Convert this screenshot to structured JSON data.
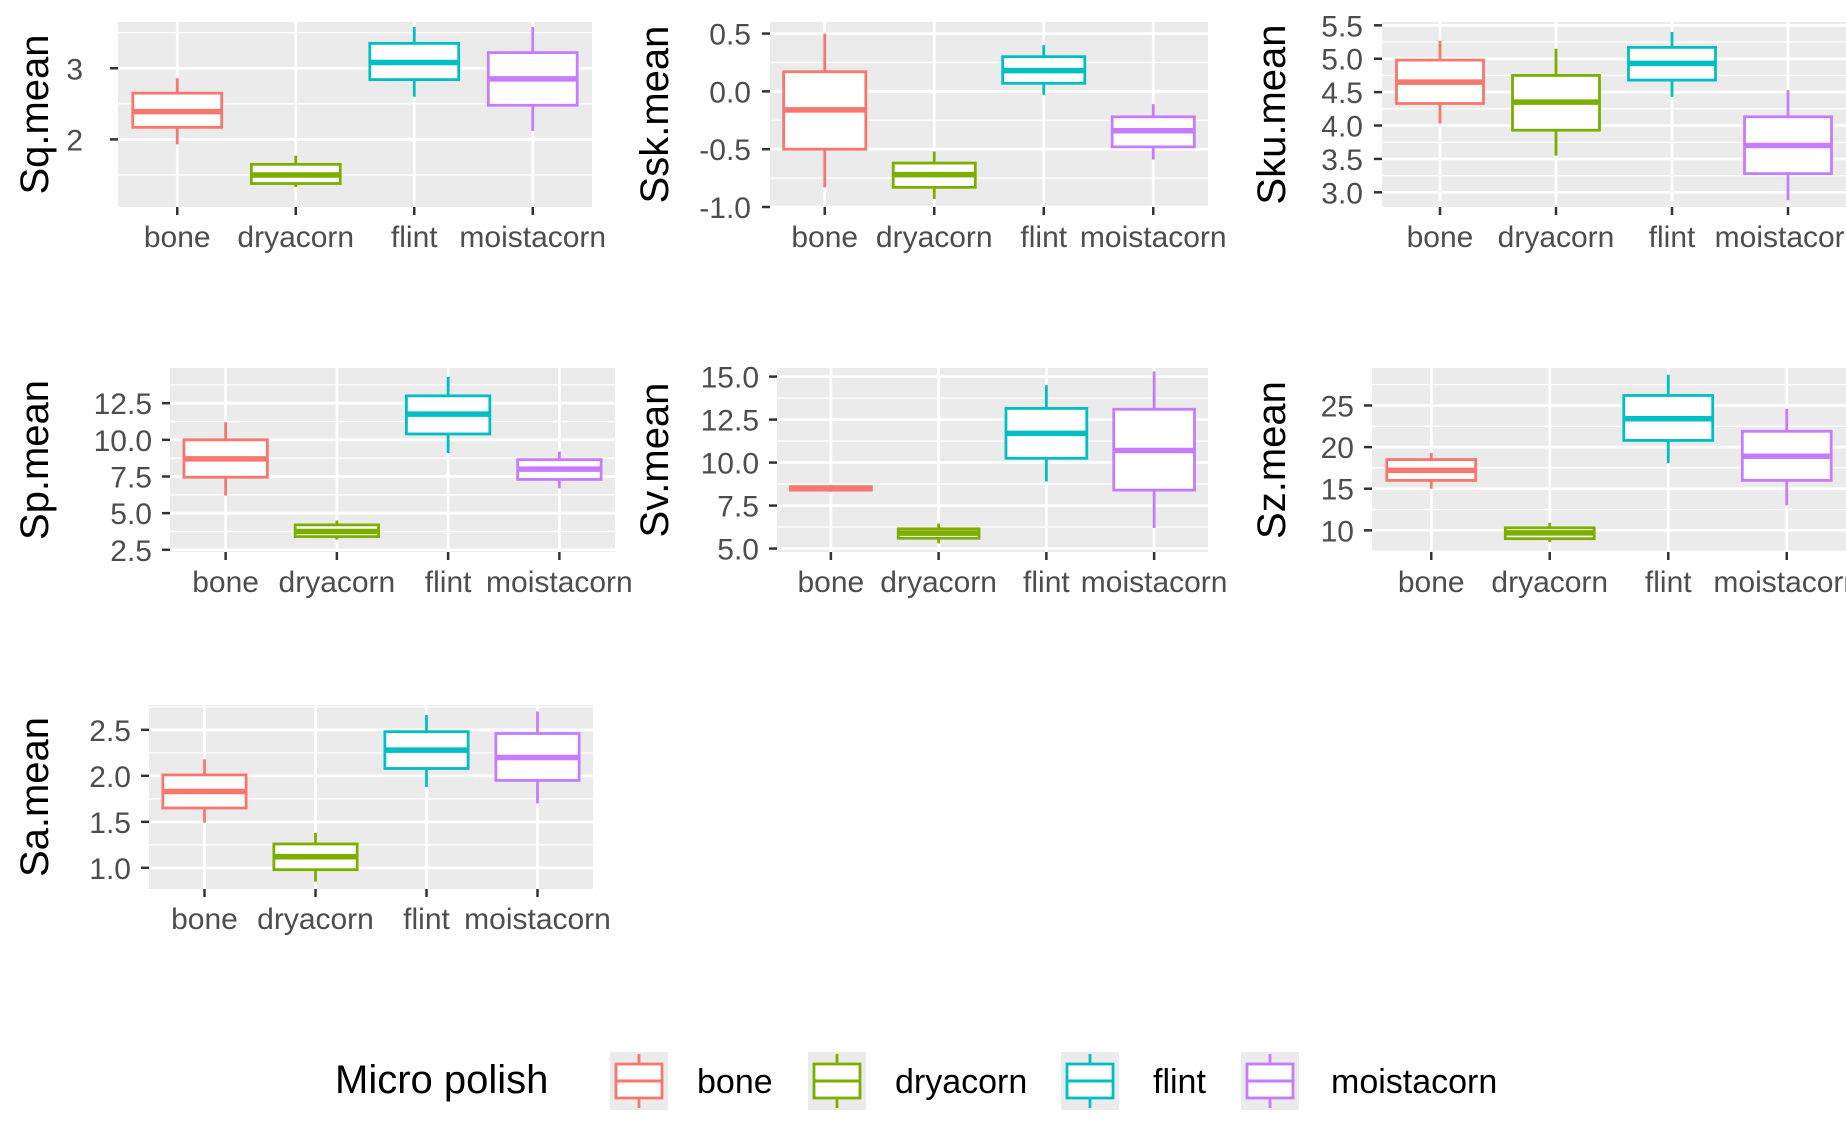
{
  "legend": {
    "title": "Micro polish",
    "items": [
      "bone",
      "dryacorn",
      "flint",
      "moistacorn"
    ],
    "colors": [
      "#F8766D",
      "#7CAE00",
      "#00BFC4",
      "#C77CFF"
    ],
    "placement": "bottom"
  },
  "panel_background": "#EBEBEB",
  "chart_data": [
    {
      "type": "boxplot",
      "ylabel": "Sq.mean",
      "categories": [
        "bone",
        "dryacorn",
        "flint",
        "moistacorn"
      ],
      "yticks": [
        "2",
        "3"
      ],
      "ytick_values": [
        2,
        3
      ],
      "ylim": [
        1.05,
        3.65
      ],
      "boxes": [
        {
          "min": 1.93,
          "q1": 2.17,
          "median": 2.39,
          "q3": 2.65,
          "max": 2.86
        },
        {
          "min": 1.33,
          "q1": 1.38,
          "median": 1.5,
          "q3": 1.65,
          "max": 1.77
        },
        {
          "min": 2.6,
          "q1": 2.84,
          "median": 3.08,
          "q3": 3.35,
          "max": 3.58
        },
        {
          "min": 2.12,
          "q1": 2.48,
          "median": 2.85,
          "q3": 3.22,
          "max": 3.58
        }
      ]
    },
    {
      "type": "boxplot",
      "ylabel": "Ssk.mean",
      "categories": [
        "bone",
        "dryacorn",
        "flint",
        "moistacorn"
      ],
      "yticks": [
        "0.5",
        "0.0",
        "-0.5",
        "-1.0"
      ],
      "ytick_values": [
        0.5,
        0.0,
        -0.5,
        -1.0
      ],
      "ylim": [
        -1.0,
        0.6
      ],
      "boxes": [
        {
          "min": -0.83,
          "q1": -0.5,
          "median": -0.16,
          "q3": 0.17,
          "max": 0.5
        },
        {
          "min": -0.93,
          "q1": -0.83,
          "median": -0.72,
          "q3": -0.62,
          "max": -0.52
        },
        {
          "min": -0.03,
          "q1": 0.07,
          "median": 0.18,
          "q3": 0.3,
          "max": 0.4
        },
        {
          "min": -0.59,
          "q1": -0.48,
          "median": -0.34,
          "q3": -0.22,
          "max": -0.11
        }
      ]
    },
    {
      "type": "boxplot",
      "ylabel": "Sku.mean",
      "categories": [
        "bone",
        "dryacorn",
        "flint",
        "moistacorn"
      ],
      "yticks": [
        "5.5",
        "5.0",
        "4.5",
        "4.0",
        "3.5",
        "3.0"
      ],
      "ytick_values": [
        5.5,
        5.0,
        4.5,
        4.0,
        3.5,
        3.0
      ],
      "ylim": [
        2.78,
        5.55
      ],
      "boxes": [
        {
          "min": 4.03,
          "q1": 4.33,
          "median": 4.65,
          "q3": 4.98,
          "max": 5.27
        },
        {
          "min": 3.55,
          "q1": 3.93,
          "median": 4.35,
          "q3": 4.75,
          "max": 5.15
        },
        {
          "min": 4.43,
          "q1": 4.68,
          "median": 4.93,
          "q3": 5.17,
          "max": 5.4
        },
        {
          "min": 2.88,
          "q1": 3.28,
          "median": 3.7,
          "q3": 4.13,
          "max": 4.53
        }
      ]
    },
    {
      "type": "boxplot",
      "ylabel": "Sp.mean",
      "categories": [
        "bone",
        "dryacorn",
        "flint",
        "moistacorn"
      ],
      "yticks": [
        "12.5",
        "10.0",
        "7.5",
        "5.0",
        "2.5"
      ],
      "ytick_values": [
        12.5,
        10.0,
        7.5,
        5.0,
        2.5
      ],
      "ylim": [
        2.35,
        14.9
      ],
      "boxes": [
        {
          "min": 6.2,
          "q1": 7.45,
          "median": 8.7,
          "q3": 10.0,
          "max": 11.2
        },
        {
          "min": 3.2,
          "q1": 3.4,
          "median": 3.75,
          "q3": 4.2,
          "max": 4.5
        },
        {
          "min": 9.1,
          "q1": 10.4,
          "median": 11.75,
          "q3": 13.0,
          "max": 14.3
        },
        {
          "min": 6.7,
          "q1": 7.3,
          "median": 8.0,
          "q3": 8.65,
          "max": 9.2
        }
      ]
    },
    {
      "type": "boxplot",
      "ylabel": "Sv.mean",
      "categories": [
        "bone",
        "dryacorn",
        "flint",
        "moistacorn"
      ],
      "yticks": [
        "15.0",
        "12.5",
        "10.0",
        "7.5",
        "5.0"
      ],
      "ytick_values": [
        15.0,
        12.5,
        10.0,
        7.5,
        5.0
      ],
      "ylim": [
        4.8,
        15.5
      ],
      "boxes": [
        {
          "min": 8.3,
          "q1": 8.4,
          "median": 8.5,
          "q3": 8.6,
          "max": 8.7
        },
        {
          "min": 5.3,
          "q1": 5.6,
          "median": 5.9,
          "q3": 6.15,
          "max": 6.45
        },
        {
          "min": 8.9,
          "q1": 10.25,
          "median": 11.7,
          "q3": 13.15,
          "max": 14.5
        },
        {
          "min": 6.2,
          "q1": 8.4,
          "median": 10.7,
          "q3": 13.1,
          "max": 15.3
        }
      ]
    },
    {
      "type": "boxplot",
      "ylabel": "Sz.mean",
      "categories": [
        "bone",
        "dryacorn",
        "flint",
        "moistacorn"
      ],
      "yticks": [
        "25",
        "20",
        "15",
        "10"
      ],
      "ytick_values": [
        25,
        20,
        15,
        10
      ],
      "ylim": [
        7.4,
        29.5
      ],
      "boxes": [
        {
          "min": 15.0,
          "q1": 16.0,
          "median": 17.2,
          "q3": 18.5,
          "max": 19.3
        },
        {
          "min": 8.6,
          "q1": 9.0,
          "median": 9.7,
          "q3": 10.3,
          "max": 10.9
        },
        {
          "min": 18.1,
          "q1": 20.8,
          "median": 23.4,
          "q3": 26.2,
          "max": 28.7
        },
        {
          "min": 13.0,
          "q1": 16.0,
          "median": 18.9,
          "q3": 21.9,
          "max": 24.6
        }
      ]
    },
    {
      "type": "boxplot",
      "ylabel": "Sa.mean",
      "categories": [
        "bone",
        "dryacorn",
        "flint",
        "moistacorn"
      ],
      "yticks": [
        "2.5",
        "2.0",
        "1.5",
        "1.0"
      ],
      "ytick_values": [
        2.5,
        2.0,
        1.5,
        1.0
      ],
      "ylim": [
        0.77,
        2.77
      ],
      "boxes": [
        {
          "min": 1.49,
          "q1": 1.65,
          "median": 1.83,
          "q3": 2.01,
          "max": 2.18
        },
        {
          "min": 0.85,
          "q1": 0.98,
          "median": 1.12,
          "q3": 1.26,
          "max": 1.38
        },
        {
          "min": 1.88,
          "q1": 2.08,
          "median": 2.28,
          "q3": 2.48,
          "max": 2.66
        },
        {
          "min": 1.7,
          "q1": 1.95,
          "median": 2.2,
          "q3": 2.46,
          "max": 2.7
        }
      ]
    }
  ]
}
